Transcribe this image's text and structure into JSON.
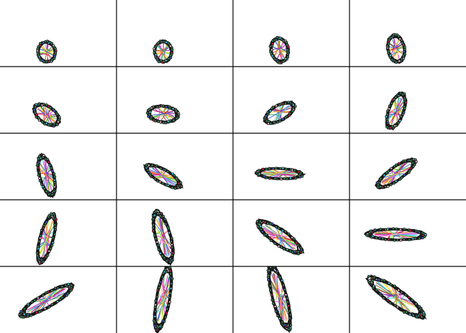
{
  "grid": {
    "rows": 5,
    "columns": 4,
    "background_color": "#ffffff",
    "line_color": "#000000",
    "outline_color": "#1a1a1a",
    "node_color": "#3c8c5a",
    "palette": [
      "#e6194b",
      "#3cb44b",
      "#ffe119",
      "#4363d8",
      "#f58231",
      "#911eb4",
      "#42d4f4",
      "#f032e6",
      "#bfef45",
      "#fabed4",
      "#469990",
      "#9a6324"
    ]
  },
  "panels": [
    {
      "aspect": 1.15,
      "angle": 80,
      "size": 0.3
    },
    {
      "aspect": 1.2,
      "angle": 90,
      "size": 0.31
    },
    {
      "aspect": 1.4,
      "angle": 80,
      "size": 0.36
    },
    {
      "aspect": 1.6,
      "angle": 80,
      "size": 0.4
    },
    {
      "aspect": 1.7,
      "angle": 35,
      "size": 0.42
    },
    {
      "aspect": 1.8,
      "angle": 5,
      "size": 0.44
    },
    {
      "aspect": 2.1,
      "angle": 150,
      "size": 0.48
    },
    {
      "aspect": 2.4,
      "angle": 110,
      "size": 0.54
    },
    {
      "aspect": 2.8,
      "angle": 75,
      "size": 0.6
    },
    {
      "aspect": 2.9,
      "angle": 30,
      "size": 0.58
    },
    {
      "aspect": 4.2,
      "angle": 2,
      "size": 0.66
    },
    {
      "aspect": 3.3,
      "angle": 145,
      "size": 0.66
    },
    {
      "aspect": 3.6,
      "angle": 105,
      "size": 0.72
    },
    {
      "aspect": 3.3,
      "angle": 75,
      "size": 0.76
    },
    {
      "aspect": 3.4,
      "angle": 35,
      "size": 0.76
    },
    {
      "aspect": 5.2,
      "angle": 1,
      "size": 0.84
    },
    {
      "aspect": 4.2,
      "angle": 150,
      "size": 0.86
    },
    {
      "aspect": 4.6,
      "angle": 100,
      "size": 0.92
    },
    {
      "aspect": 4.4,
      "angle": 75,
      "size": 0.96
    },
    {
      "aspect": 4.1,
      "angle": 35,
      "size": 0.96
    }
  ]
}
